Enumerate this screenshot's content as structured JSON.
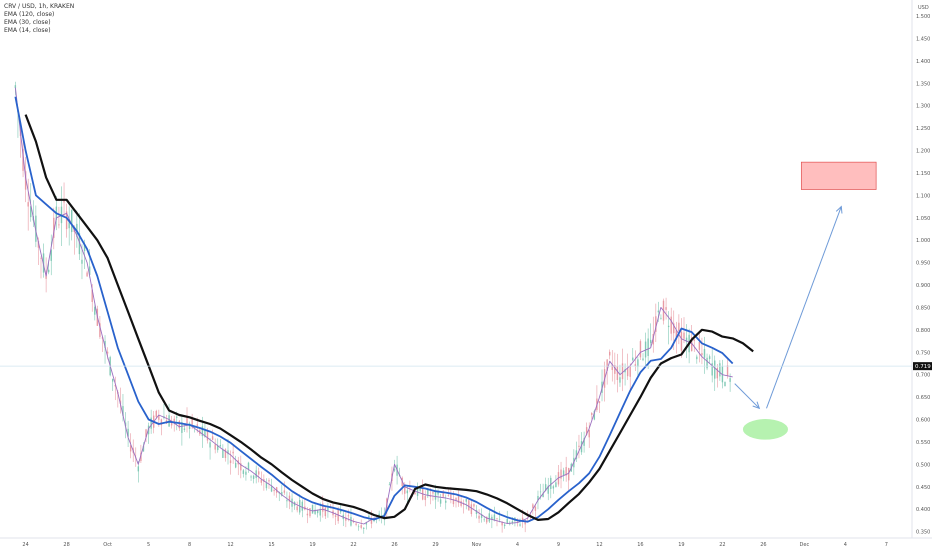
{
  "header": {
    "symbol": "CRV / USD, 1h, KRAKEN",
    "indicators": [
      "EMA (120, close)",
      "EMA (30, close)",
      "EMA (14, close)"
    ]
  },
  "axis": {
    "currency": "USD",
    "current_price": "0.719"
  },
  "colors": {
    "ema120": "#111111",
    "ema30": "#2962cc",
    "ema14": "#9c6fc0",
    "up_candle": "#7fc8b4",
    "down_candle": "#e89aa3",
    "target_zone_fill": "#ffb3b3",
    "target_zone_stroke": "#e05050",
    "support_zone": "#b6f2b0",
    "arrow": "#6f9bd8",
    "price_line": "#d0e4ef"
  },
  "chart_data": {
    "type": "line",
    "title": "CRV / USD, 1h, KRAKEN",
    "ylabel": "USD",
    "ylim": [
      0.3,
      1.5
    ],
    "y_ticks": [
      "0.300",
      "0.350",
      "0.400",
      "0.450",
      "0.500",
      "0.550",
      "0.600",
      "0.650",
      "0.700",
      "0.750",
      "0.800",
      "0.850",
      "0.900",
      "0.950",
      "1.000",
      "1.050",
      "1.100",
      "1.150",
      "1.200",
      "1.250",
      "1.300",
      "1.350",
      "1.400",
      "1.450",
      "1.500"
    ],
    "x_ticks": [
      "24",
      "28",
      "Oct",
      "5",
      "8",
      "12",
      "15",
      "19",
      "22",
      "26",
      "29",
      "Nov",
      "4",
      "9",
      "12",
      "16",
      "19",
      "22",
      "26",
      "Dec",
      "4",
      "7"
    ],
    "x_tick_index": [
      0,
      4,
      8,
      12,
      16,
      20,
      24,
      28,
      32,
      36,
      40,
      44,
      48,
      52,
      56,
      60,
      64,
      68,
      72,
      76,
      80,
      84
    ],
    "x_index_range": [
      -2.5,
      86.5
    ],
    "series": [
      {
        "name": "EMA (120, close)",
        "x": [
          0,
          1,
          2,
          3,
          4,
          5,
          6,
          7,
          8,
          9,
          10,
          11,
          12,
          13,
          14,
          15,
          16,
          17,
          18,
          19,
          20,
          21,
          22,
          23,
          24,
          25,
          26,
          27,
          28,
          29,
          30,
          31,
          32,
          33,
          34,
          35,
          36,
          37,
          38,
          39,
          40,
          41,
          42,
          43,
          44,
          45,
          46,
          47,
          48,
          49,
          50,
          51,
          52,
          53,
          54,
          55,
          56,
          57,
          58,
          59,
          60,
          61,
          62,
          63,
          64,
          65,
          66,
          67,
          68,
          69,
          70,
          71
        ],
        "values": [
          1.28,
          1.22,
          1.14,
          1.09,
          1.09,
          1.06,
          1.03,
          1.0,
          0.96,
          0.9,
          0.84,
          0.78,
          0.72,
          0.66,
          0.62,
          0.61,
          0.605,
          0.597,
          0.59,
          0.58,
          0.565,
          0.55,
          0.533,
          0.515,
          0.5,
          0.482,
          0.465,
          0.45,
          0.435,
          0.423,
          0.415,
          0.41,
          0.405,
          0.397,
          0.387,
          0.38,
          0.383,
          0.4,
          0.445,
          0.455,
          0.45,
          0.447,
          0.445,
          0.443,
          0.44,
          0.433,
          0.424,
          0.413,
          0.4,
          0.387,
          0.376,
          0.378,
          0.393,
          0.414,
          0.434,
          0.46,
          0.49,
          0.53,
          0.57,
          0.61,
          0.65,
          0.693,
          0.725,
          0.737,
          0.745,
          0.778,
          0.8,
          0.796,
          0.785,
          0.781,
          0.77,
          0.752
        ]
      },
      {
        "name": "EMA (30, close)",
        "x": [
          -1,
          0,
          1,
          2,
          3,
          4,
          5,
          6,
          7,
          8,
          9,
          10,
          11,
          12,
          13,
          14,
          15,
          16,
          17,
          18,
          19,
          20,
          21,
          22,
          23,
          24,
          25,
          26,
          27,
          28,
          29,
          30,
          31,
          32,
          33,
          34,
          35,
          36,
          37,
          38,
          39,
          40,
          41,
          42,
          43,
          44,
          45,
          46,
          47,
          48,
          49,
          50,
          51,
          52,
          53,
          54,
          55,
          56,
          57,
          58,
          59,
          60,
          61,
          62,
          63,
          64,
          65,
          66,
          67,
          68,
          69
        ],
        "values": [
          1.32,
          1.2,
          1.1,
          1.08,
          1.06,
          1.05,
          1.02,
          0.98,
          0.92,
          0.84,
          0.76,
          0.7,
          0.64,
          0.6,
          0.59,
          0.595,
          0.592,
          0.588,
          0.581,
          0.573,
          0.562,
          0.548,
          0.53,
          0.512,
          0.494,
          0.477,
          0.458,
          0.44,
          0.426,
          0.415,
          0.408,
          0.403,
          0.397,
          0.39,
          0.382,
          0.377,
          0.385,
          0.43,
          0.453,
          0.45,
          0.446,
          0.44,
          0.437,
          0.433,
          0.426,
          0.416,
          0.403,
          0.391,
          0.382,
          0.375,
          0.372,
          0.382,
          0.4,
          0.421,
          0.44,
          0.458,
          0.48,
          0.517,
          0.565,
          0.615,
          0.664,
          0.705,
          0.731,
          0.735,
          0.76,
          0.803,
          0.795,
          0.77,
          0.76,
          0.748,
          0.725
        ]
      },
      {
        "name": "EMA (14, close)",
        "x": [
          -1,
          0,
          1,
          2,
          3,
          4,
          5,
          6,
          7,
          8,
          9,
          10,
          11,
          12,
          13,
          14,
          15,
          16,
          17,
          18,
          19,
          20,
          21,
          22,
          23,
          24,
          25,
          26,
          27,
          28,
          29,
          30,
          31,
          32,
          33,
          34,
          35,
          36,
          37,
          38,
          39,
          40,
          41,
          42,
          43,
          44,
          45,
          46,
          47,
          48,
          49,
          50,
          51,
          52,
          53,
          54,
          55,
          56,
          57,
          58,
          59,
          60,
          61,
          62,
          63,
          64,
          65,
          66,
          67,
          68,
          69
        ],
        "values": [
          1.34,
          1.14,
          1.02,
          0.92,
          1.05,
          1.06,
          1.01,
          0.95,
          0.83,
          0.74,
          0.66,
          0.56,
          0.5,
          0.58,
          0.61,
          0.6,
          0.584,
          0.588,
          0.572,
          0.555,
          0.537,
          0.521,
          0.499,
          0.485,
          0.467,
          0.452,
          0.432,
          0.415,
          0.404,
          0.396,
          0.4,
          0.392,
          0.382,
          0.373,
          0.367,
          0.38,
          0.38,
          0.5,
          0.45,
          0.44,
          0.432,
          0.428,
          0.425,
          0.419,
          0.41,
          0.395,
          0.38,
          0.374,
          0.368,
          0.37,
          0.38,
          0.42,
          0.45,
          0.47,
          0.48,
          0.53,
          0.58,
          0.65,
          0.73,
          0.7,
          0.72,
          0.75,
          0.76,
          0.85,
          0.82,
          0.78,
          0.77,
          0.74,
          0.72,
          0.7,
          0.695
        ]
      }
    ],
    "annotations": {
      "target_zone": {
        "x": [
          75.7,
          83.0
        ],
        "y": [
          1.113,
          1.174
        ]
      },
      "support_zone": {
        "cx": 72.2,
        "cy": 0.578,
        "rx": 2.2,
        "ry": 0.023
      },
      "arrow_down": {
        "from": [
          69.2,
          0.68
        ],
        "to": [
          71.6,
          0.625
        ]
      },
      "arrow_up": {
        "from": [
          72.3,
          0.625
        ],
        "to": [
          79.6,
          1.075
        ]
      }
    }
  }
}
